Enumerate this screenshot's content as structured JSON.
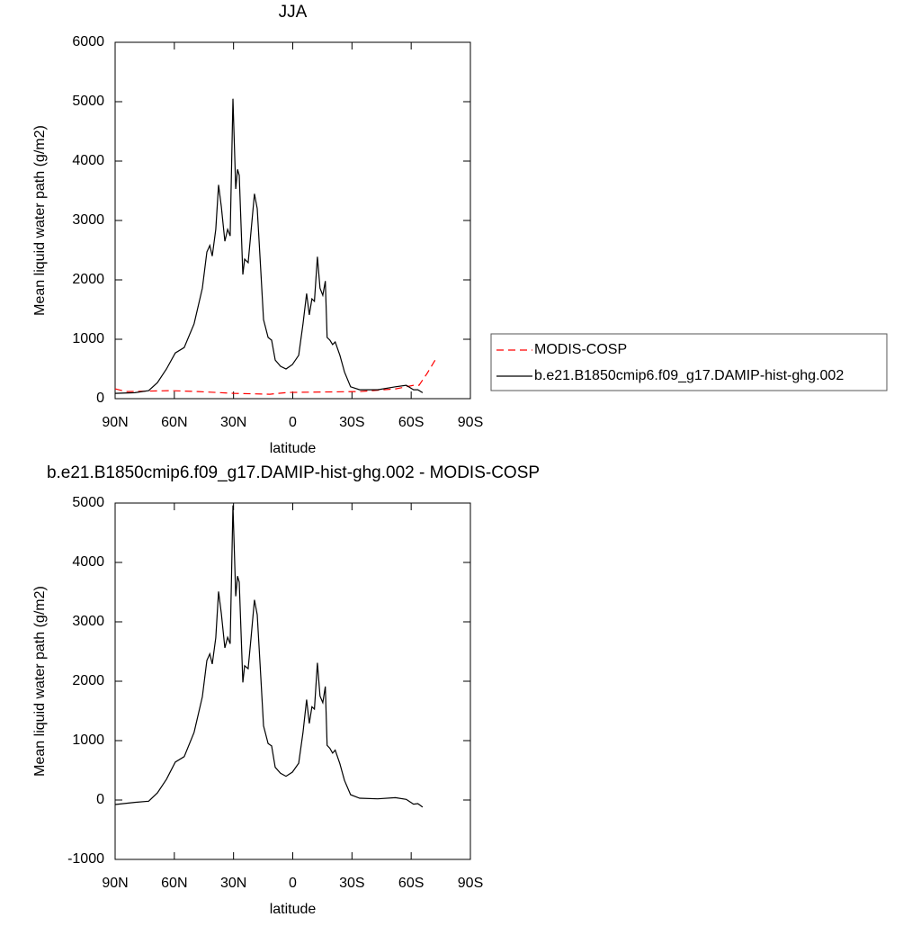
{
  "chart_data": [
    {
      "type": "line",
      "title": "JJA",
      "xlabel": "latitude",
      "ylabel": "Mean liquid water path (g/m2)",
      "xlim": [
        90,
        -90
      ],
      "xticks": [
        {
          "value": 90,
          "label": "90N"
        },
        {
          "value": 60,
          "label": "60N"
        },
        {
          "value": 30,
          "label": "30N"
        },
        0,
        {
          "value": -30,
          "label": "30S"
        },
        {
          "value": -60,
          "label": "60S"
        },
        {
          "value": -90,
          "label": "90S"
        }
      ],
      "ylim": [
        0,
        6000
      ],
      "yticks": [
        0,
        1000,
        2000,
        3000,
        4000,
        5000,
        6000
      ],
      "legend": "right",
      "series": [
        {
          "name": "MODIS-COSP",
          "color": "#ff0000",
          "dashed": true,
          "x": [
            90,
            84.5,
            61.7,
            48,
            29.8,
            11.6,
            2.5,
            -34,
            -52.2,
            -61.3,
            -64,
            -68.1,
            -72.7
          ],
          "values": [
            165,
            120,
            135,
            120,
            90,
            75,
            105,
            120,
            165,
            225,
            225,
            425,
            680
          ]
        },
        {
          "name": "b.e21.B1850cmip6.f09_g17.DAMIP-hist-ghg.002",
          "color": "#000000",
          "dashed": false,
          "x": [
            90,
            80,
            73,
            68.6,
            64,
            59.5,
            55,
            50,
            45.8,
            43.5,
            42,
            40.8,
            39,
            37.6,
            36.2,
            34.4,
            33,
            31.7,
            30.3,
            28.9,
            28,
            27.1,
            25.3,
            24.4,
            22.6,
            21.2,
            19.4,
            18,
            16.2,
            14.8,
            12.5,
            10.7,
            8.9,
            6.2,
            3.4,
            0.2,
            -3,
            -5.2,
            -7,
            -8.4,
            -9.7,
            -11,
            -12.5,
            -13.8,
            -15.2,
            -16.5,
            -17.4,
            -18.8,
            -20.2,
            -21.5,
            -23.9,
            -26.2,
            -29.3,
            -33.9,
            -43,
            -52,
            -57.5,
            -61.2,
            -63.4,
            -65.8
          ],
          "values": [
            90,
            100,
            135,
            270,
            500,
            770,
            860,
            1260,
            1860,
            2470,
            2580,
            2400,
            2850,
            3600,
            3230,
            2650,
            2850,
            2740,
            5050,
            3530,
            3860,
            3760,
            2090,
            2350,
            2290,
            2800,
            3450,
            3200,
            2170,
            1330,
            1030,
            985,
            650,
            545,
            500,
            575,
            730,
            1260,
            1770,
            1410,
            1680,
            1640,
            2390,
            1860,
            1740,
            1980,
            1030,
            985,
            910,
            955,
            730,
            450,
            200,
            150,
            150,
            200,
            225,
            150,
            150,
            100
          ]
        }
      ]
    },
    {
      "type": "line",
      "title": "b.e21.B1850cmip6.f09_g17.DAMIP-hist-ghg.002 - MODIS-COSP",
      "xlabel": "latitude",
      "ylabel": "Mean liquid water path (g/m2)",
      "xlim": [
        90,
        -90
      ],
      "xticks": [
        {
          "value": 90,
          "label": "90N"
        },
        {
          "value": 60,
          "label": "60N"
        },
        {
          "value": 30,
          "label": "30N"
        },
        0,
        {
          "value": -30,
          "label": "30S"
        },
        {
          "value": -60,
          "label": "60S"
        },
        {
          "value": -90,
          "label": "90S"
        }
      ],
      "ylim": [
        -1000,
        5000
      ],
      "yticks": [
        -1000,
        0,
        1000,
        2000,
        3000,
        4000,
        5000
      ],
      "series": [
        {
          "color": "#000000",
          "dashed": false,
          "x": [
            90,
            80,
            73,
            68.6,
            64,
            59.5,
            55,
            50,
            45.8,
            43.5,
            42,
            40.8,
            39,
            37.6,
            36.2,
            34.4,
            33,
            31.7,
            30.3,
            28.9,
            28,
            27.1,
            25.3,
            24.4,
            22.6,
            21.2,
            19.4,
            18,
            16.2,
            14.8,
            12.5,
            10.7,
            8.9,
            6.2,
            3.4,
            0.2,
            -3,
            -5.2,
            -7,
            -8.4,
            -9.7,
            -11,
            -12.5,
            -13.8,
            -15.2,
            -16.5,
            -17.4,
            -18.8,
            -20.2,
            -21.5,
            -23.9,
            -26.2,
            -29.3,
            -33.9,
            -43,
            -52,
            -57.5,
            -61.2,
            -63.4,
            -65.8
          ],
          "values": [
            -75,
            -40,
            -20,
            120,
            350,
            640,
            730,
            1140,
            1740,
            2350,
            2460,
            2290,
            2730,
            3510,
            3140,
            2560,
            2740,
            2630,
            4960,
            3430,
            3770,
            3670,
            1980,
            2260,
            2210,
            2710,
            3370,
            3120,
            2090,
            1250,
            950,
            910,
            550,
            450,
            400,
            470,
            620,
            1140,
            1690,
            1290,
            1570,
            1530,
            2310,
            1750,
            1640,
            1910,
            920,
            870,
            790,
            840,
            610,
            330,
            90,
            30,
            20,
            40,
            10,
            -70,
            -60,
            -120
          ]
        }
      ]
    }
  ]
}
